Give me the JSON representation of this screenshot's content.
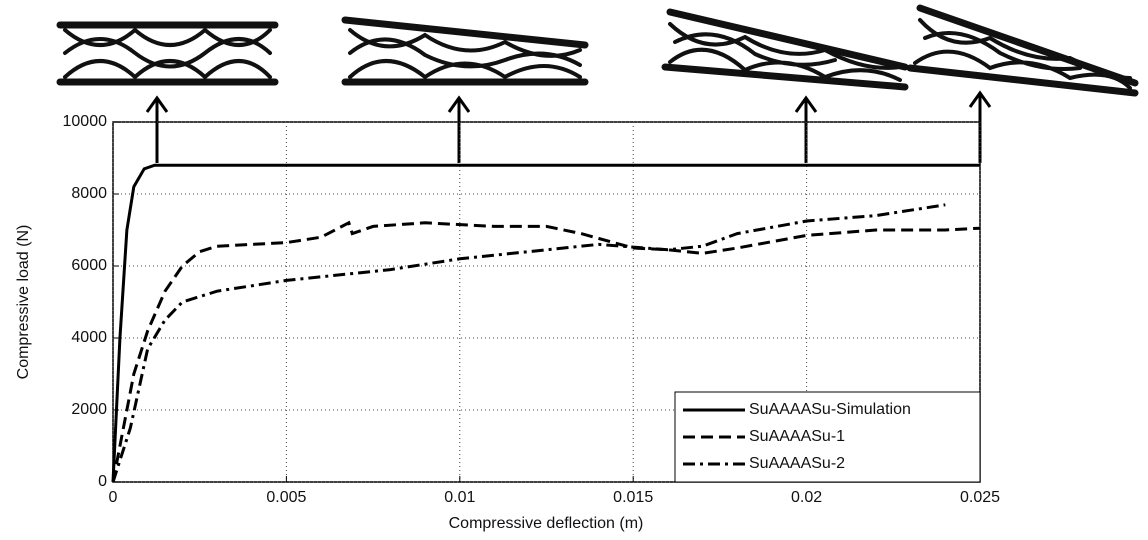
{
  "chart_data": {
    "type": "line",
    "xlabel": "Compressive deflection (m)",
    "ylabel": "Compressive load (N)",
    "xlim": [
      0,
      0.025
    ],
    "ylim": [
      0,
      10000
    ],
    "xticks": [
      0,
      0.005,
      0.01,
      0.015,
      0.02,
      0.025
    ],
    "yticks": [
      0,
      2000,
      4000,
      6000,
      8000,
      10000
    ],
    "grid": true,
    "legend": "lower right",
    "series": [
      {
        "name": "SuAAAASu-Simulation",
        "color": "#000000",
        "dash": "solid",
        "x": [
          0,
          0.0002,
          0.0004,
          0.0006,
          0.0009,
          0.0012,
          0.025
        ],
        "values": [
          0,
          4000,
          7000,
          8200,
          8700,
          8800,
          8800
        ]
      },
      {
        "name": "SuAAAASu-1",
        "color": "#000000",
        "dash": "dashed",
        "x": [
          0,
          0.0003,
          0.0006,
          0.001,
          0.0015,
          0.002,
          0.0025,
          0.003,
          0.004,
          0.005,
          0.006,
          0.0068,
          0.0069,
          0.0075,
          0.009,
          0.011,
          0.0125,
          0.0135,
          0.015,
          0.016,
          0.017,
          0.018,
          0.02,
          0.022,
          0.024,
          0.025
        ],
        "values": [
          0,
          1500,
          3000,
          4200,
          5300,
          6000,
          6400,
          6550,
          6600,
          6650,
          6800,
          7200,
          6900,
          7100,
          7200,
          7100,
          7100,
          6900,
          6500,
          6450,
          6350,
          6500,
          6850,
          7000,
          7000,
          7050
        ]
      },
      {
        "name": "SuAAAASu-2",
        "color": "#000000",
        "dash": "dashdot",
        "x": [
          0,
          0.0005,
          0.001,
          0.0015,
          0.002,
          0.003,
          0.005,
          0.007,
          0.008,
          0.01,
          0.012,
          0.014,
          0.016,
          0.017,
          0.018,
          0.02,
          0.022,
          0.024
        ],
        "values": [
          0,
          1500,
          3700,
          4500,
          5000,
          5300,
          5600,
          5800,
          5900,
          6200,
          6400,
          6600,
          6450,
          6550,
          6900,
          7250,
          7400,
          7700
        ]
      }
    ]
  }
}
